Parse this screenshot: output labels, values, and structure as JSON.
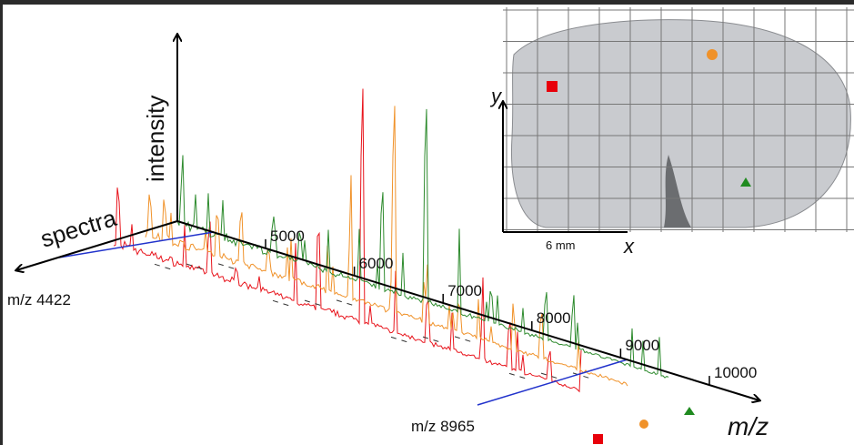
{
  "figure": {
    "axis_labels": {
      "intensity": "intensity",
      "spectra": "spectra",
      "mz": "m/z"
    },
    "mz_ticks": [
      5000,
      6000,
      7000,
      8000,
      9000,
      10000
    ],
    "annotations": [
      "m/z 4422",
      "m/z 8965"
    ],
    "inset": {
      "scale_label": "6 mm",
      "x_label": "x",
      "y_label": "y"
    }
  }
}
